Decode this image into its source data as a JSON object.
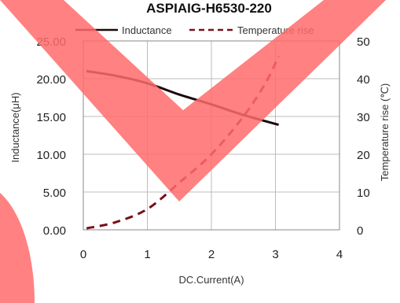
{
  "chart_data": {
    "type": "line",
    "title": "ASPIAIG-H6530-220",
    "xlabel": "DC.Current(A)",
    "ylabel": "Inductance(μH)",
    "y2label": "Temperature rise (℃)",
    "xlim": [
      0,
      4
    ],
    "ylim": [
      0,
      25
    ],
    "y2lim": [
      0,
      50
    ],
    "x_ticks": [
      "0",
      "1",
      "2",
      "3",
      "4"
    ],
    "y_ticks": [
      "0.00",
      "5.00",
      "10.00",
      "15.00",
      "20.00",
      "25.00"
    ],
    "y2_ticks": [
      "0",
      "10",
      "20",
      "30",
      "40",
      "50"
    ],
    "grid": true,
    "legend_position": "top",
    "series": [
      {
        "name": "Inductance",
        "axis": "left",
        "style": "solid",
        "color": "#1a0a0a",
        "x": [
          0.05,
          0.5,
          1.0,
          1.5,
          2.0,
          2.5,
          3.05
        ],
        "y": [
          21.0,
          20.4,
          19.4,
          17.9,
          16.6,
          15.2,
          13.9
        ]
      },
      {
        "name": "Temperature rise",
        "axis": "right",
        "style": "dashed",
        "color": "#7a0f1a",
        "x": [
          0.05,
          0.5,
          1.0,
          1.5,
          2.0,
          2.5,
          2.85,
          3.05
        ],
        "y": [
          0.4,
          2.0,
          5.5,
          12.5,
          20.0,
          30.0,
          39.0,
          46.0
        ]
      }
    ]
  },
  "overlay": {
    "color": "#ff6b6b"
  }
}
